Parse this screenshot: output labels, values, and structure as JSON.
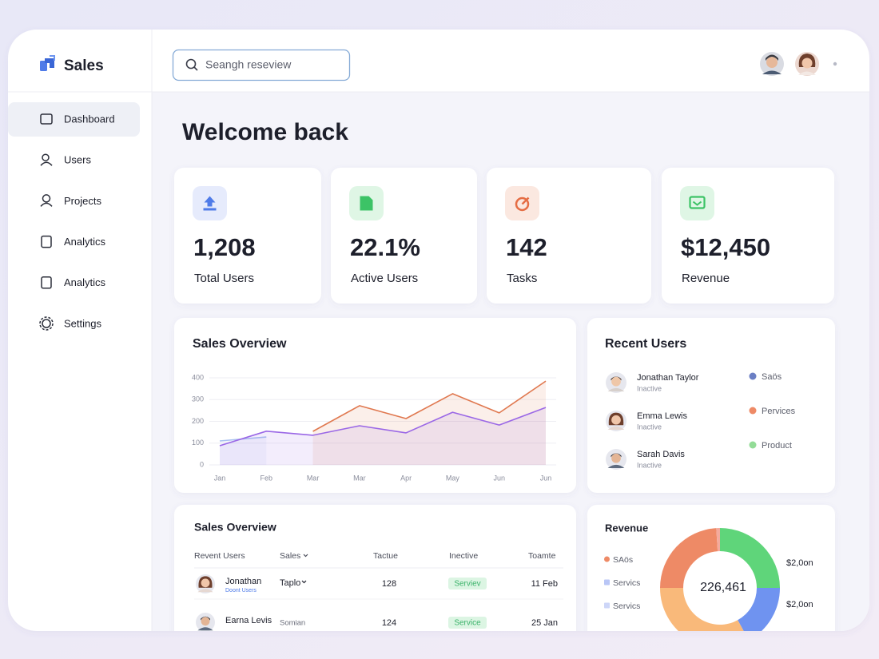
{
  "sidebar": {
    "brand": "Sales",
    "nav": [
      "Dashboard",
      "Users",
      "Projects",
      "Analytics",
      "Analytics",
      "Settings"
    ]
  },
  "header": {
    "search_placeholder": "Seangh reseview"
  },
  "page_title": "Welcome back",
  "stats": [
    {
      "value": "1,208",
      "label": "Total Users"
    },
    {
      "value": "22.1%",
      "label": "Active Users"
    },
    {
      "value": "142",
      "label": "Tasks"
    },
    {
      "value": "$12,450",
      "label": "Revenue"
    }
  ],
  "recent_users": {
    "title": "Recent Users",
    "users": [
      {
        "name": "Jonathan Taylor",
        "status": "Inactive"
      },
      {
        "name": "Emma Lewis",
        "status": "Inactive"
      },
      {
        "name": "Sarah Davis",
        "status": "Inactive"
      }
    ],
    "legend": [
      {
        "label": "Saös",
        "color": "#6b7fc4"
      },
      {
        "label": "Pervices",
        "color": "#ee8a66"
      },
      {
        "label": "Product",
        "color": "#93dc97"
      }
    ]
  },
  "table": {
    "title": "Sales Overview",
    "columns": [
      "Revent Users",
      "Sales",
      "Tactue",
      "Inective",
      "Toamte"
    ],
    "rows": [
      {
        "user": "Jonathan",
        "sub": "Doont Users",
        "sales": "Taplo",
        "value": "128",
        "status": "Serviev",
        "date": "11 Feb"
      },
      {
        "user": "Earna Levis",
        "sales": "Somian",
        "value": "124",
        "status": "Service",
        "date": "25 Jan"
      }
    ]
  },
  "chart_data": [
    {
      "type": "line",
      "title": "Sales Overview",
      "categories": [
        "Jan",
        "Feb",
        "Mar",
        "Mar",
        "Apr",
        "May",
        "Jun",
        "Jun"
      ],
      "series": [
        {
          "color": "#a9c1f0",
          "values": [
            110,
            128,
            null,
            null,
            null,
            null,
            null,
            null
          ]
        },
        {
          "color": "#e0784f",
          "values": [
            null,
            null,
            154,
            272,
            213,
            327,
            239,
            385
          ]
        },
        {
          "color": "#9a67e6",
          "values": [
            88,
            155,
            136,
            180,
            147,
            242,
            183,
            264
          ]
        }
      ],
      "ylim": [
        0,
        400
      ],
      "yticks": [
        0,
        100,
        200,
        300,
        400
      ],
      "grid": true
    },
    {
      "type": "pie",
      "donut": true,
      "title": "Revenue",
      "center_label": "226,461",
      "values": [
        25,
        17,
        33,
        24,
        1
      ],
      "colors": [
        "#5fd57a",
        "#6f93f0",
        "#f9b97a",
        "#ee8a66",
        "#f4aa9c"
      ],
      "legend": [
        {
          "label": "SAös",
          "color": "#ee8a66"
        },
        {
          "label": "Servics",
          "color": "#b9c6f6"
        },
        {
          "label": "Servics",
          "color": "#cdd6f8"
        }
      ],
      "side_labels": [
        "$2,0on",
        "$2,0on"
      ]
    }
  ]
}
